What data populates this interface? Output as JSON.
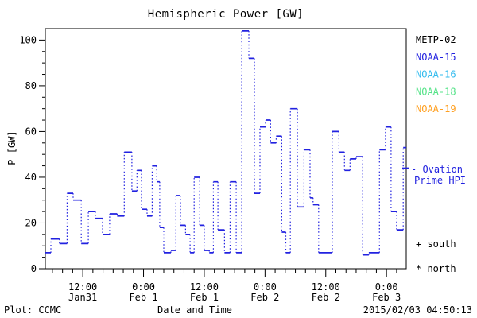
{
  "title": "Hemispheric Power [GW]",
  "footer": {
    "left": "Plot: CCMC",
    "right": "2015/02/03 04:50:13"
  },
  "legend": {
    "items": [
      {
        "label": "METP-02",
        "color": "#000000"
      },
      {
        "label": "NOAA-15",
        "color": "#2222e0"
      },
      {
        "label": "NOAA-16",
        "color": "#33bbee"
      },
      {
        "label": "NOAA-18",
        "color": "#55e388"
      },
      {
        "label": "NOAA-19",
        "color": "#ffa022"
      }
    ]
  },
  "annotations": {
    "ovation": {
      "lines": [
        "- Ovation",
        "Prime HPI"
      ],
      "color": "#2222e0",
      "value_gw": 44
    },
    "south": "+ south",
    "north": "* north"
  },
  "chart_data": {
    "type": "line",
    "subtype": "step-histogram",
    "title": "Hemispheric Power [GW]",
    "xlabel": "Date and Time",
    "ylabel": "P [GW]",
    "x_unit": "hours since Jan 31 00:00",
    "xlim": [
      4.6,
      75.9
    ],
    "ylim": [
      0,
      105
    ],
    "grid": false,
    "legend_position": "right-outside",
    "y_major_ticks": [
      0,
      20,
      40,
      60,
      80,
      100
    ],
    "y_minor_step": 5,
    "x_minor_step": 2,
    "x_major_ticks": [
      {
        "hours": 12,
        "time": "12:00",
        "date": "Jan31"
      },
      {
        "hours": 24,
        "time": "0:00",
        "date": "Feb 1"
      },
      {
        "hours": 36,
        "time": "12:00",
        "date": "Feb 1"
      },
      {
        "hours": 48,
        "time": "0:00",
        "date": "Feb 2"
      },
      {
        "hours": 60,
        "time": "12:00",
        "date": "Feb 2"
      },
      {
        "hours": 72,
        "time": "0:00",
        "date": "Feb 3"
      }
    ],
    "series": [
      {
        "name": "Ovation Prime HPI",
        "color": "#2222e0",
        "line_style": "solid-levels-dotted-risers",
        "steps_t_hours_value_gw": [
          [
            4.6,
            7
          ],
          [
            5.7,
            13
          ],
          [
            7.4,
            11
          ],
          [
            8.9,
            33
          ],
          [
            10.1,
            30
          ],
          [
            11.7,
            11
          ],
          [
            13.1,
            25
          ],
          [
            14.5,
            22
          ],
          [
            15.9,
            15
          ],
          [
            17.3,
            24
          ],
          [
            18.8,
            23
          ],
          [
            20.2,
            51
          ],
          [
            21.7,
            34
          ],
          [
            22.7,
            43
          ],
          [
            23.6,
            26
          ],
          [
            24.7,
            23
          ],
          [
            25.7,
            45
          ],
          [
            26.6,
            38
          ],
          [
            27.2,
            18
          ],
          [
            28.0,
            7
          ],
          [
            29.4,
            8
          ],
          [
            30.4,
            32
          ],
          [
            31.3,
            19
          ],
          [
            32.3,
            15
          ],
          [
            33.2,
            7
          ],
          [
            34.0,
            40
          ],
          [
            35.1,
            19
          ],
          [
            36.0,
            8
          ],
          [
            37.0,
            7
          ],
          [
            37.8,
            38
          ],
          [
            38.7,
            17
          ],
          [
            40.0,
            7
          ],
          [
            41.1,
            38
          ],
          [
            42.3,
            7
          ],
          [
            43.4,
            104
          ],
          [
            44.8,
            92
          ],
          [
            45.9,
            33
          ],
          [
            47.0,
            62
          ],
          [
            48.1,
            65
          ],
          [
            49.1,
            55
          ],
          [
            50.2,
            58
          ],
          [
            51.3,
            16
          ],
          [
            52.1,
            7
          ],
          [
            53.0,
            70
          ],
          [
            54.4,
            27
          ],
          [
            55.7,
            52
          ],
          [
            56.9,
            31
          ],
          [
            57.5,
            28
          ],
          [
            58.6,
            7
          ],
          [
            60.1,
            7
          ],
          [
            61.3,
            60
          ],
          [
            62.6,
            51
          ],
          [
            63.7,
            43
          ],
          [
            64.8,
            48
          ],
          [
            66.0,
            49
          ],
          [
            67.3,
            6
          ],
          [
            68.5,
            7
          ],
          [
            70.6,
            52
          ],
          [
            71.8,
            62
          ],
          [
            72.9,
            25
          ],
          [
            74.0,
            17
          ],
          [
            75.3,
            53
          ]
        ]
      }
    ],
    "markers_note": {
      "plus": "south",
      "asterisk": "north"
    }
  }
}
